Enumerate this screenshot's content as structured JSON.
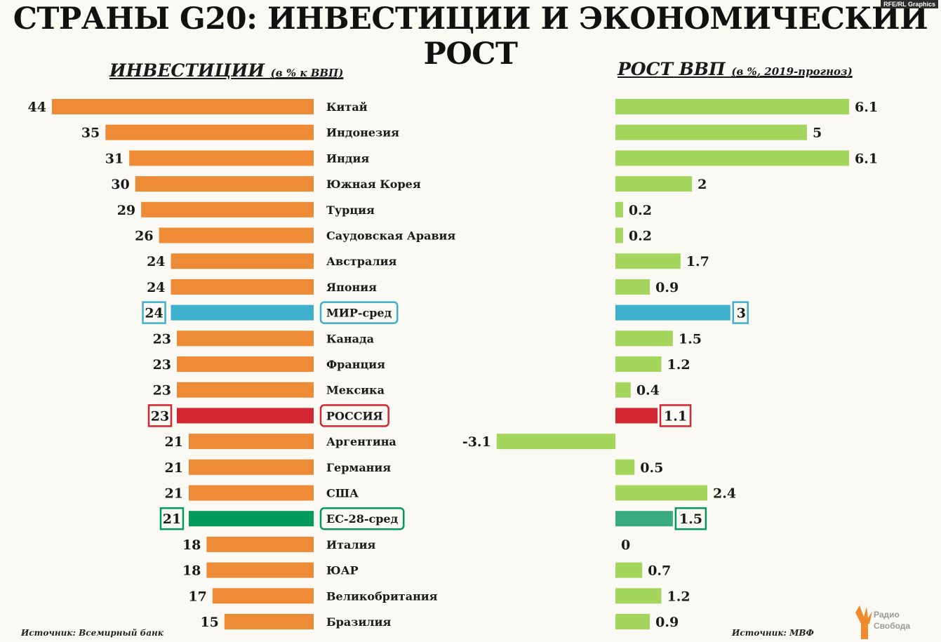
{
  "title": "СТРАНЫ G20: ИНВЕСТИЦИИ И ЭКОНОМИЧЕСКИЙ РОСТ",
  "credit": "RFE/RL Graphics",
  "left_panel": {
    "title": "ИНВЕСТИЦИИ",
    "subtitle": "(в % к ВВП)",
    "source": "Источник: Всемирный банк"
  },
  "right_panel": {
    "title": "РОСТ ВВП",
    "subtitle": "(в %, 2019-прогноз)",
    "source": "Источник: МВФ"
  },
  "logo": {
    "line1": "Радио",
    "line2": "Свобода"
  },
  "colors": {
    "orange": "#ee8b37",
    "green_bar": "#a4d65e",
    "world": "#3eafcc",
    "russia": "#d22630",
    "eu": "#009a5c",
    "eu_growth": "#3aab7f"
  },
  "chart_data": [
    {
      "type": "bar",
      "title": "ИНВЕСТИЦИИ (в % к ВВП)",
      "categories": [
        "Китай",
        "Индонезия",
        "Индия",
        "Южная Корея",
        "Турция",
        "Саудовская Аравия",
        "Австралия",
        "Япония",
        "МИР-сред",
        "Канада",
        "Франция",
        "Мексика",
        "РОССИЯ",
        "Аргентина",
        "Германия",
        "США",
        "ЕС-28-сред",
        "Италия",
        "ЮАР",
        "Великобритания",
        "Бразилия"
      ],
      "values": [
        44,
        35,
        31,
        30,
        29,
        26,
        24,
        24,
        24,
        23,
        23,
        23,
        23,
        21,
        21,
        21,
        21,
        18,
        18,
        17,
        15
      ],
      "highlight": {
        "8": "world",
        "12": "russia",
        "16": "eu"
      }
    },
    {
      "type": "bar",
      "title": "РОСТ ВВП (в %, 2019-прогноз)",
      "categories": [
        "Китай",
        "Индонезия",
        "Индия",
        "Южная Корея",
        "Турция",
        "Саудовская Аравия",
        "Австралия",
        "Япония",
        "МИР-сред",
        "Канада",
        "Франция",
        "Мексика",
        "РОССИЯ",
        "Аргентина",
        "Германия",
        "США",
        "ЕС-28-сред",
        "Италия",
        "ЮАР",
        "Великобритания",
        "Бразилия"
      ],
      "values": [
        6.1,
        5,
        6.1,
        2,
        0.2,
        0.2,
        1.7,
        0.9,
        3,
        1.5,
        1.2,
        0.4,
        1.1,
        -3.1,
        0.5,
        2.4,
        1.5,
        0,
        0.7,
        1.2,
        0.9
      ],
      "labels": [
        "6.1",
        "5",
        "6.1",
        "2",
        "0.2",
        "0.2",
        "1.7",
        "0.9",
        "3",
        "1.5",
        "1.2",
        "0.4",
        "1.1",
        "-3.1",
        "0.5",
        "2.4",
        "1.5",
        "0",
        "0.7",
        "1.2",
        "0.9"
      ],
      "highlight": {
        "8": "world",
        "12": "russia",
        "16": "eu_growth"
      }
    }
  ]
}
